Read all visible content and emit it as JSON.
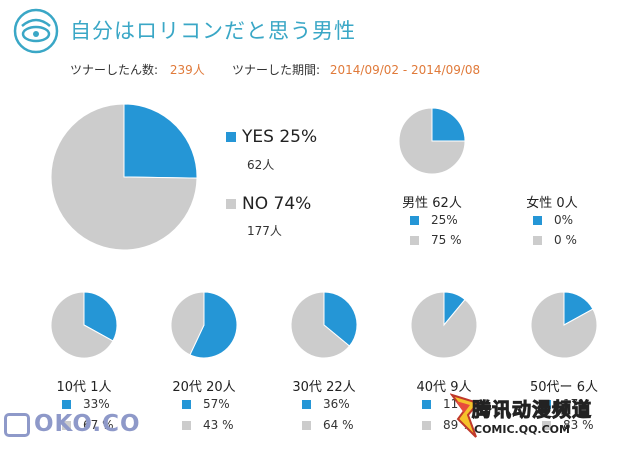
{
  "header": {
    "title": "自分はロリコンだと思う男性",
    "total_label": "ツナーしたん数:",
    "total_value": "239人",
    "period_label": "ツナーした期間:",
    "period_value": "2014/09/02 - 2014/09/08"
  },
  "colors": {
    "yes": "#2596d6",
    "no": "#cccccc"
  },
  "chart_data": [
    {
      "type": "pie",
      "categories": [
        "YES",
        "NO"
      ],
      "values": [
        25,
        74
      ],
      "counts": [
        "62人",
        "177人"
      ],
      "labels": [
        "YES 25%",
        "NO 74%"
      ]
    },
    {
      "type": "pie",
      "title": "男性 62人",
      "categories": [
        "",
        ""
      ],
      "values": [
        25,
        75
      ],
      "labels": [
        "25%",
        "75 %"
      ]
    },
    {
      "type": "pie",
      "title": "女性 0人",
      "categories": [
        "",
        ""
      ],
      "values": [
        0,
        0
      ],
      "labels": [
        "0%",
        "0 %"
      ]
    },
    {
      "type": "pie",
      "title": "10代 1人",
      "categories": [
        "",
        ""
      ],
      "values": [
        33,
        67
      ],
      "labels": [
        "33%",
        "67 %"
      ]
    },
    {
      "type": "pie",
      "title": "20代 20人",
      "categories": [
        "",
        ""
      ],
      "values": [
        57,
        43
      ],
      "labels": [
        "57%",
        "43 %"
      ]
    },
    {
      "type": "pie",
      "title": "30代 22人",
      "categories": [
        "",
        ""
      ],
      "values": [
        36,
        64
      ],
      "labels": [
        "36%",
        "64 %"
      ]
    },
    {
      "type": "pie",
      "title": "40代 9人",
      "categories": [
        "",
        ""
      ],
      "values": [
        11,
        89
      ],
      "labels": [
        "11%",
        "89 %"
      ]
    },
    {
      "type": "pie",
      "title": "50代ー 6人",
      "categories": [
        "",
        ""
      ],
      "values": [
        17,
        83
      ],
      "labels": [
        "17%",
        "83 %"
      ]
    }
  ],
  "watermarks": {
    "left": "OKO.CO",
    "right_cn": "腾讯动漫频道",
    "right_en": "COMIC.QQ.COM"
  }
}
